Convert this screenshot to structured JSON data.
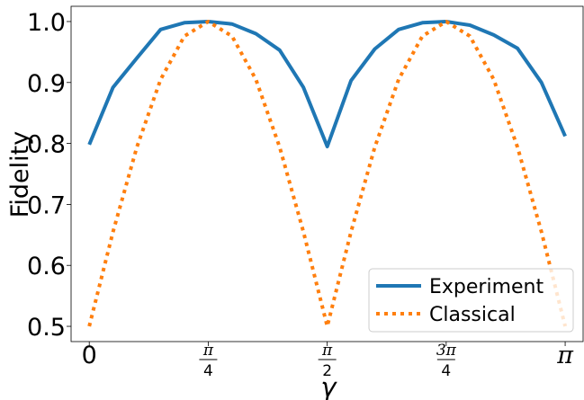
{
  "chart_data": {
    "type": "line",
    "title": "",
    "xlabel": "γ",
    "ylabel": "Fidelity",
    "xlim": [
      -0.12,
      3.26
    ],
    "ylim": [
      0.475,
      1.025
    ],
    "grid": false,
    "legend_placement": "lower-right",
    "x_ticks": [
      {
        "value": 0,
        "label": "0",
        "kind": "plain"
      },
      {
        "value": 0.7854,
        "num": "π",
        "den": "4",
        "kind": "frac"
      },
      {
        "value": 1.5708,
        "num": "π",
        "den": "2",
        "kind": "frac"
      },
      {
        "value": 2.3562,
        "num": "3π",
        "den": "4",
        "kind": "frac"
      },
      {
        "value": 3.1416,
        "label": "π",
        "kind": "plain"
      }
    ],
    "y_ticks": [
      {
        "value": 0.5,
        "label": "0.5"
      },
      {
        "value": 0.6,
        "label": "0.6"
      },
      {
        "value": 0.7,
        "label": "0.7"
      },
      {
        "value": 0.8,
        "label": "0.8"
      },
      {
        "value": 0.9,
        "label": "0.9"
      },
      {
        "value": 1.0,
        "label": "1.0"
      }
    ],
    "series": [
      {
        "name": "Experiment",
        "color": "#1f77b4",
        "style": "solid",
        "x": [
          0,
          0.157,
          0.314,
          0.471,
          0.628,
          0.785,
          0.942,
          1.1,
          1.257,
          1.414,
          1.571,
          1.728,
          1.885,
          2.042,
          2.199,
          2.356,
          2.513,
          2.67,
          2.827,
          2.985,
          3.142
        ],
        "y": [
          0.798,
          0.892,
          0.94,
          0.987,
          0.998,
          1.0,
          0.996,
          0.98,
          0.953,
          0.892,
          0.795,
          0.903,
          0.955,
          0.987,
          0.998,
          1.0,
          0.994,
          0.978,
          0.956,
          0.9,
          0.812
        ]
      },
      {
        "name": "Classical",
        "color": "#ff7f0e",
        "style": "dotted",
        "x": [
          0,
          0.157,
          0.314,
          0.471,
          0.628,
          0.785,
          0.942,
          1.1,
          1.257,
          1.414,
          1.571,
          1.728,
          1.885,
          2.042,
          2.199,
          2.356,
          2.513,
          2.67,
          2.827,
          2.985,
          3.142
        ],
        "y": [
          0.5,
          0.655,
          0.794,
          0.905,
          0.976,
          1.0,
          0.976,
          0.905,
          0.794,
          0.655,
          0.5,
          0.655,
          0.794,
          0.905,
          0.976,
          1.0,
          0.976,
          0.905,
          0.794,
          0.655,
          0.5
        ]
      }
    ]
  }
}
